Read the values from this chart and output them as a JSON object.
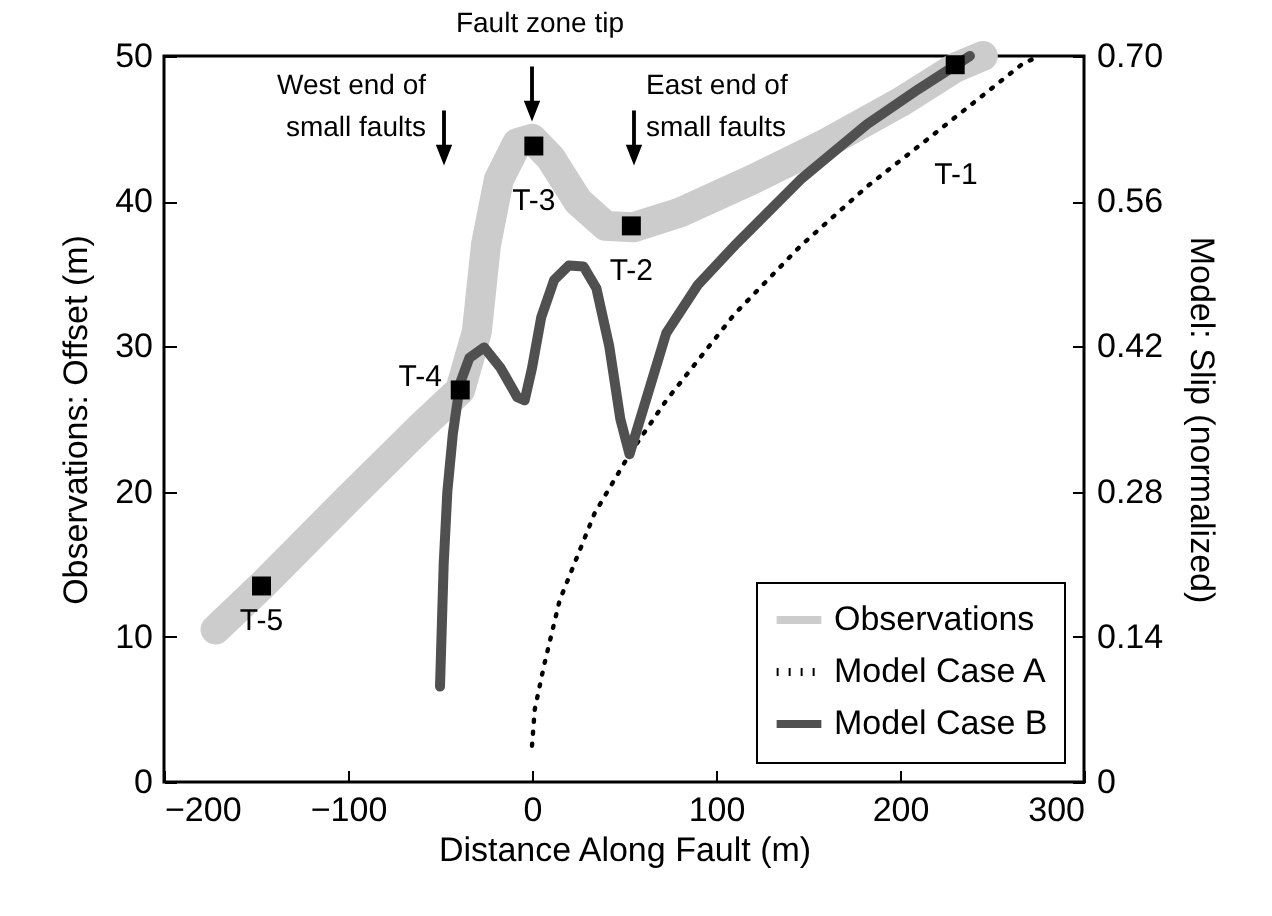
{
  "chart_data": {
    "type": "line",
    "xlabel": "Distance Along Fault (m)",
    "ylabel": "Observations: Offset (m)",
    "y2label": "Model: Slip (normalized)",
    "xlim": [
      -200,
      300
    ],
    "xticks": [
      -200,
      -100,
      0,
      100,
      200,
      300
    ],
    "ylim": [
      0,
      50
    ],
    "yticks": [
      0,
      10,
      20,
      30,
      40,
      50
    ],
    "y2lim": [
      0,
      0.7
    ],
    "y2ticks": [
      {
        "value": 0,
        "label": "0"
      },
      0.14,
      0.28,
      0.42,
      0.56,
      {
        "value": 0.7,
        "label": "0.70"
      }
    ],
    "grid": false,
    "legend": "bottom right",
    "series": [
      {
        "name": "Observations",
        "type": "line",
        "color": "#cccccc",
        "x": [
          -172,
          -147,
          -100,
          -60,
          -39,
          -30,
          -25,
          -18,
          -8,
          0,
          10,
          25,
          40,
          55,
          80,
          120,
          160,
          200,
          230,
          245
        ],
        "values": [
          10.5,
          13.5,
          19.5,
          24.5,
          27,
          31,
          37,
          41.5,
          44,
          44.3,
          43,
          40,
          38.3,
          38.2,
          39.2,
          41.5,
          44,
          46.8,
          49.2,
          50
        ]
      },
      {
        "type": "scatter",
        "marker": "square",
        "color": "#000000",
        "x": [
          -147,
          -39,
          1,
          54,
          230
        ],
        "values": [
          13.5,
          27,
          43.8,
          38.3,
          49.4
        ]
      },
      {
        "name": "Model Case A",
        "type": "line",
        "axis": "y2",
        "line_style": "dotted",
        "color": "#000000",
        "x": [
          0,
          1.5,
          6.5,
          15,
          34,
          53,
          73,
          110,
          146,
          182,
          218,
          267,
          276
        ],
        "values": [
          0.035,
          0.07,
          0.112,
          0.175,
          0.259,
          0.316,
          0.368,
          0.451,
          0.517,
          0.574,
          0.624,
          0.693,
          0.7
        ]
      },
      {
        "name": "Model Case B",
        "type": "line",
        "axis": "y2",
        "line_style": "solid",
        "color": "#505050",
        "x": [
          -50,
          -48,
          -46,
          -43,
          -39,
          -34,
          -26,
          -17,
          -8,
          -4,
          0,
          5,
          12,
          20,
          28,
          35,
          42,
          48,
          53,
          60,
          73,
          90,
          110,
          146,
          182,
          210,
          238
        ],
        "values": [
          0.092,
          0.21,
          0.28,
          0.336,
          0.385,
          0.409,
          0.419,
          0.399,
          0.371,
          0.368,
          0.399,
          0.448,
          0.484,
          0.498,
          0.497,
          0.476,
          0.42,
          0.35,
          0.316,
          0.357,
          0.433,
          0.479,
          0.517,
          0.581,
          0.634,
          0.668,
          0.7
        ]
      }
    ],
    "annotations": [
      "T-1",
      {
        "text": "T-2",
        "x": 54,
        "y": 38.3
      },
      {
        "text": "T-3",
        "x": 1,
        "y": 43.8
      },
      {
        "text": "T-4",
        "x": -39,
        "y": 27
      },
      {
        "text": "T-5",
        "x": -147,
        "y": 13.5
      },
      "Fault zone tip",
      "West end of\nsmall faults",
      "East end of\nsmall faults"
    ]
  }
}
